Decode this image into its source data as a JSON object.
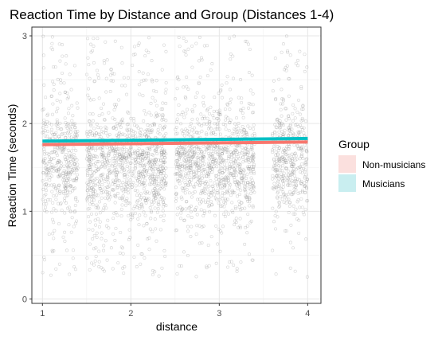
{
  "chart_data": {
    "type": "scatter",
    "title": "Reaction Time by Distance and Group (Distances 1-4)",
    "xlabel": "distance",
    "ylabel": "Reaction Time (seconds)",
    "xlim": [
      0.88,
      4.15
    ],
    "ylim": [
      -0.05,
      3.1
    ],
    "x_ticks": [
      1,
      2,
      3,
      4
    ],
    "y_ticks": [
      0,
      1,
      2,
      3
    ],
    "grid": true,
    "legend": {
      "title": "Group",
      "position": "right",
      "entries": [
        {
          "name": "Non-musicians",
          "color": "#f8766d",
          "fill": "#fbe0de"
        },
        {
          "name": "Musicians",
          "color": "#00bfc4",
          "fill": "#c9eef0"
        }
      ]
    },
    "jitter_points": {
      "color": "#7f7f7f",
      "clusters": [
        {
          "x_range": [
            1.0,
            1.4
          ],
          "median": 1.55,
          "n": 420
        },
        {
          "x_range": [
            1.5,
            2.4
          ],
          "median": 1.55,
          "n": 1050
        },
        {
          "x_range": [
            2.5,
            3.4
          ],
          "median": 1.55,
          "n": 1000
        },
        {
          "x_range": [
            3.6,
            4.0
          ],
          "median": 1.55,
          "n": 420
        }
      ]
    },
    "series": [
      {
        "name": "Non-musicians",
        "color": "#f8766d",
        "x": [
          1,
          4
        ],
        "y": [
          1.76,
          1.79
        ]
      },
      {
        "name": "Musicians",
        "color": "#00bfc4",
        "x": [
          1,
          4
        ],
        "y": [
          1.8,
          1.83
        ]
      }
    ]
  }
}
